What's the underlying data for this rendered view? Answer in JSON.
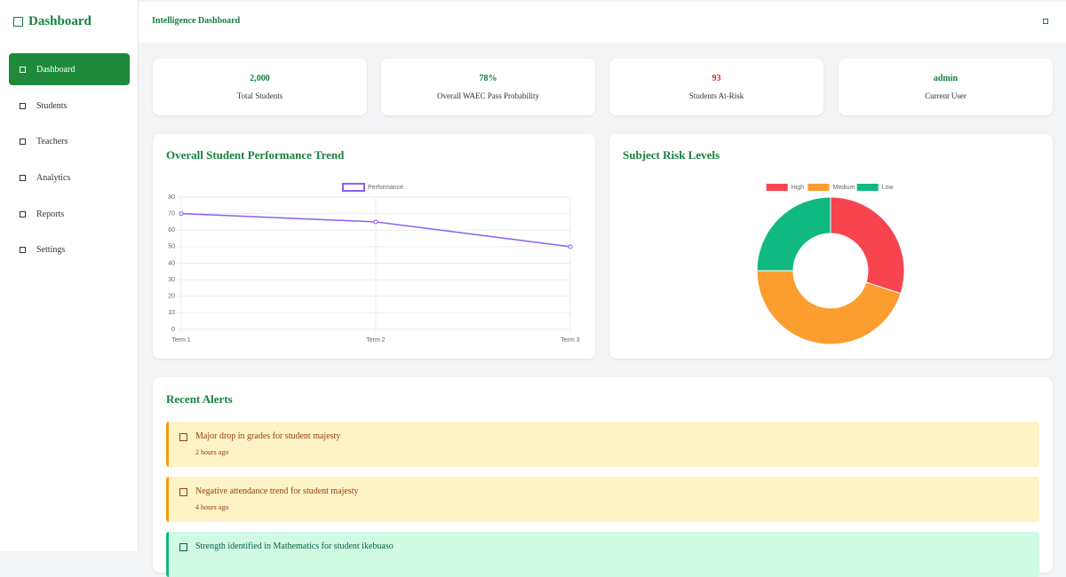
{
  "sidebar": {
    "title": "Dashboard",
    "items": [
      "Dashboard",
      "Students",
      "Teachers",
      "Analytics",
      "Reports",
      "Settings"
    ]
  },
  "header": {
    "title": "Intelligence Dashboard"
  },
  "stats": [
    {
      "value": "2,000",
      "label": "Total Students"
    },
    {
      "value": "78%",
      "label": "Overall WAEC Pass Probability"
    },
    {
      "value": "93",
      "label": "Students At-Risk"
    },
    {
      "value": "admin",
      "label": "Current User"
    }
  ],
  "chart_data": [
    {
      "type": "line",
      "title": "Overall Student Performance Trend",
      "categories": [
        "Term 1",
        "Term 2",
        "Term 3"
      ],
      "series": [
        {
          "name": "Performance",
          "color": "#8b5cf6",
          "values": [
            70,
            65,
            50
          ]
        }
      ],
      "ylim": [
        0,
        80
      ],
      "yticks": [
        0,
        10,
        20,
        30,
        40,
        50,
        60,
        70,
        80
      ],
      "grid": true
    },
    {
      "type": "pie",
      "title": "Subject Risk Levels",
      "donut": true,
      "categories": [
        "High",
        "Medium",
        "Low"
      ],
      "values": [
        30,
        45,
        25
      ],
      "colors": [
        "#f7444f",
        "#fb9d2f",
        "#10b981"
      ]
    }
  ],
  "alerts": {
    "title": "Recent Alerts",
    "items": [
      {
        "message": "Major drop in grades for student majesty",
        "time": "2 hours ago"
      },
      {
        "message": "Negative attendance trend for student majesty",
        "time": "4 hours ago"
      },
      {
        "message": "Strength identified in Mathematics for student ikebuaso"
      }
    ]
  }
}
